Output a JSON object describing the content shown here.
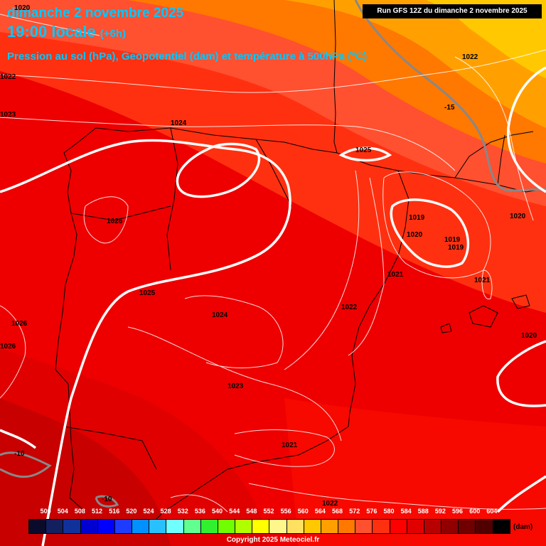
{
  "header": {
    "date": "dimanche 2 novembre 2025",
    "time": "19:00 locale",
    "offset": "(+6h)",
    "description": "Pression au sol (hPa), Geopotentiel (dam) et température à 500hPa (°C)",
    "run": "Run GFS 12Z du dimanche 2 novembre 2025"
  },
  "pressure_labels": [
    "1020",
    "1022",
    "1023",
    "1024",
    "1025",
    "1026",
    "1026",
    "1019",
    "1020",
    "1019",
    "1019",
    "1021",
    "1021",
    "1022",
    "1024",
    "1023",
    "1021",
    "1022",
    "1026",
    "1020",
    "1020",
    "1025",
    "1022"
  ],
  "temp_labels": [
    "-15",
    "-10",
    "-10"
  ],
  "legend": {
    "ticks": [
      "500",
      "504",
      "508",
      "512",
      "516",
      "520",
      "524",
      "528",
      "532",
      "536",
      "540",
      "544",
      "548",
      "552",
      "556",
      "560",
      "564",
      "568",
      "572",
      "576",
      "580",
      "584",
      "588",
      "592",
      "596",
      "600",
      "604"
    ],
    "colors": [
      "#0a0a2a",
      "#122060",
      "#10309a",
      "#0000d0",
      "#0000ff",
      "#1e3cff",
      "#0090ff",
      "#28c0ff",
      "#70ffff",
      "#60ff90",
      "#30f030",
      "#70ff00",
      "#b0ff00",
      "#ffff00",
      "#fff68c",
      "#ffe060",
      "#ffc800",
      "#ffa000",
      "#ff7800",
      "#ff5030",
      "#ff3010",
      "#ff0000",
      "#e00000",
      "#b80000",
      "#900000",
      "#700000",
      "#500000",
      "#000000"
    ],
    "unit": "(dam)"
  },
  "copyright": "Copyright 2025 Meteociel.fr"
}
